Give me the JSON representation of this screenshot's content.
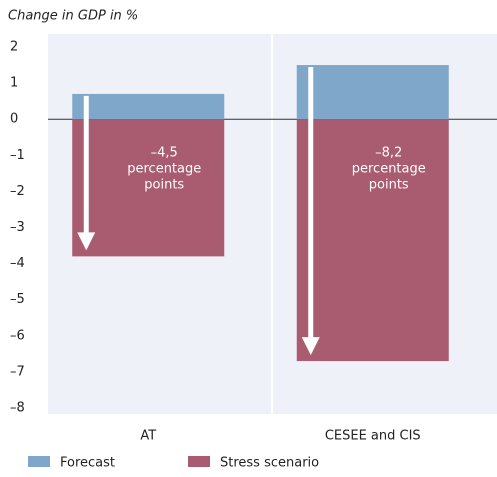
{
  "chart_data": {
    "type": "bar",
    "y_axis_label": "Change in GDP in %",
    "categories": [
      "AT",
      "CESEE and CIS"
    ],
    "series": [
      {
        "name": "Forecast",
        "color": "#7fa7c9",
        "values": [
          0.7,
          1.5
        ]
      },
      {
        "name": "Stress scenario",
        "color": "#a95b70",
        "values": [
          -3.8,
          -6.7
        ]
      }
    ],
    "annotations": [
      [
        "–4,5",
        "percentage",
        "points"
      ],
      [
        "–8,2",
        "percentage",
        "points"
      ]
    ],
    "ylim": [
      -8,
      2
    ],
    "yticks": [
      2,
      1,
      0,
      {
        "value": -1,
        "label": "–1"
      },
      {
        "value": -2,
        "label": "–2"
      },
      {
        "value": -3,
        "label": "–3"
      },
      {
        "value": -4,
        "label": "–4"
      },
      {
        "value": -5,
        "label": "–5"
      },
      {
        "value": -6,
        "label": "–6"
      },
      {
        "value": -7,
        "label": "–7"
      },
      {
        "value": -8,
        "label": "–8"
      }
    ],
    "zero_line": true
  }
}
